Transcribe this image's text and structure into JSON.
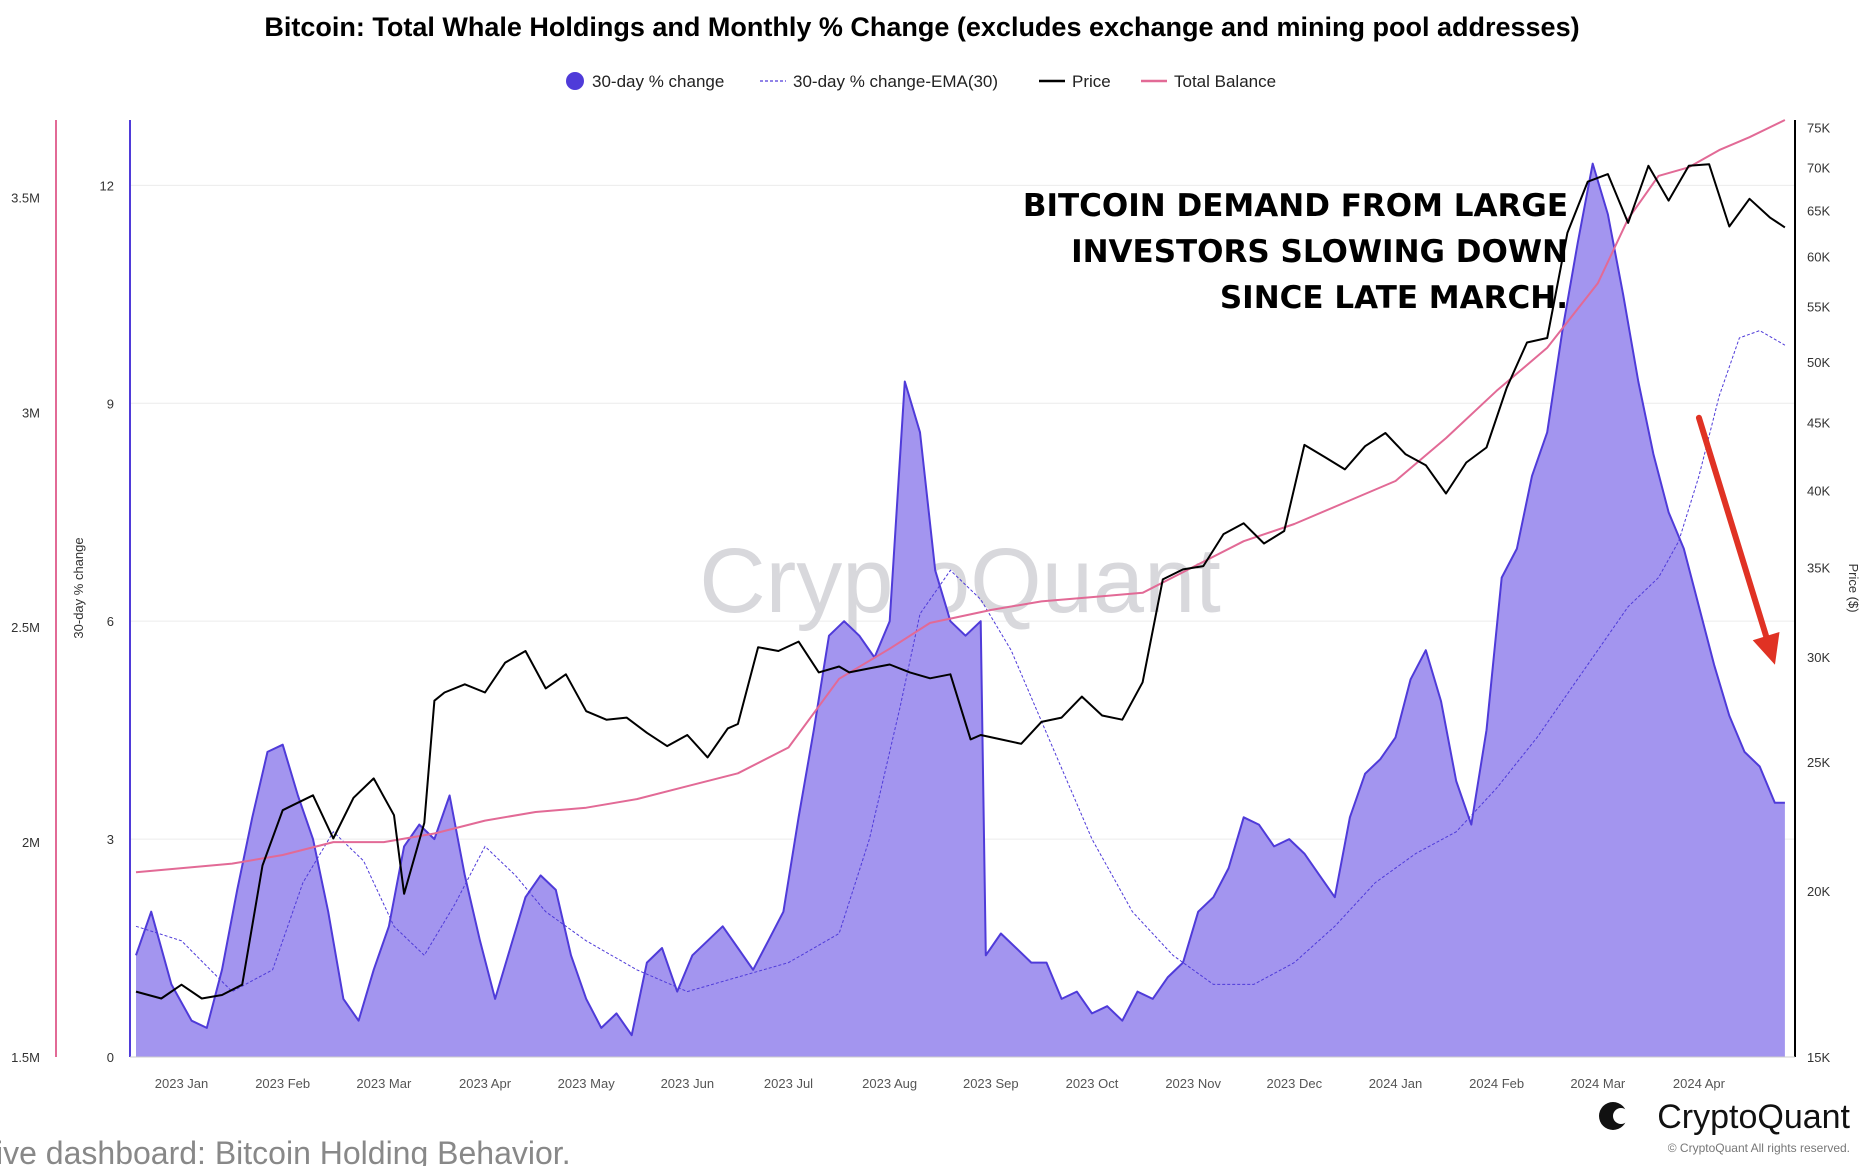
{
  "chart_data": {
    "type": "area",
    "title": "Bitcoin: Total Whale Holdings and Monthly % Change (excludes exchange and mining pool addresses)",
    "legend": [
      {
        "name": "30-day % change",
        "color": "#4f3bd9",
        "style": "dot"
      },
      {
        "name": "30-day % change-EMA(30)",
        "color": "#4f3bd9",
        "style": "dashed"
      },
      {
        "name": "Price",
        "color": "#000000",
        "style": "line"
      },
      {
        "name": "Total Balance",
        "color": "#e26a96",
        "style": "line"
      }
    ],
    "x_ticks": [
      "2023 Jan",
      "2023 Feb",
      "2023 Mar",
      "2023 Apr",
      "2023 May",
      "2023 Jun",
      "2023 Jul",
      "2023 Aug",
      "2023 Sep",
      "2023 Oct",
      "2023 Nov",
      "2023 Dec",
      "2024 Jan",
      "2024 Feb",
      "2024 Mar",
      "2024 Apr"
    ],
    "x_range_months": [
      -0.45,
      15.9
    ],
    "left_axis": {
      "label": "",
      "ticks": [
        "1.5M",
        "2M",
        "2.5M",
        "3M",
        "3.5M"
      ],
      "range": [
        1.5,
        3.68
      ]
    },
    "center_axis": {
      "label": "30-day % change",
      "ticks": [
        "0",
        "3",
        "6",
        "9",
        "12"
      ],
      "range": [
        0,
        12.9
      ]
    },
    "right_axis": {
      "label": "Price ($)",
      "ticks": [
        "15K",
        "20K",
        "25K",
        "30K",
        "35K",
        "40K",
        "45K",
        "50K",
        "55K",
        "60K",
        "65K",
        "70K",
        "75K"
      ],
      "log": true,
      "range": [
        15,
        76
      ]
    },
    "series": [
      {
        "name": "30-day % change",
        "axis": "center",
        "x": [
          -0.45,
          -0.3,
          -0.1,
          0.1,
          0.25,
          0.4,
          0.55,
          0.7,
          0.85,
          1.0,
          1.15,
          1.3,
          1.45,
          1.6,
          1.75,
          1.9,
          2.05,
          2.2,
          2.35,
          2.5,
          2.65,
          2.8,
          2.95,
          3.1,
          3.25,
          3.4,
          3.55,
          3.7,
          3.85,
          4.0,
          4.15,
          4.3,
          4.45,
          4.6,
          4.75,
          4.9,
          5.05,
          5.2,
          5.35,
          5.5,
          5.65,
          5.8,
          5.95,
          6.1,
          6.25,
          6.4,
          6.55,
          6.7,
          6.85,
          7.0,
          7.15,
          7.3,
          7.45,
          7.6,
          7.75,
          7.9,
          7.95,
          8.1,
          8.25,
          8.4,
          8.55,
          8.7,
          8.85,
          9.0,
          9.15,
          9.3,
          9.45,
          9.6,
          9.75,
          9.9,
          10.05,
          10.2,
          10.35,
          10.5,
          10.65,
          10.8,
          10.95,
          11.1,
          11.25,
          11.4,
          11.55,
          11.7,
          11.85,
          12.0,
          12.15,
          12.3,
          12.45,
          12.6,
          12.75,
          12.9,
          13.05,
          13.2,
          13.35,
          13.5,
          13.65,
          13.8,
          13.95,
          14.1,
          14.25,
          14.4,
          14.55,
          14.7,
          14.85,
          15.0,
          15.15,
          15.3,
          15.45,
          15.6,
          15.75,
          15.85
        ],
        "values": [
          1.4,
          2.0,
          1.0,
          0.5,
          0.4,
          1.2,
          2.3,
          3.3,
          4.2,
          4.3,
          3.6,
          3.0,
          2.0,
          0.8,
          0.5,
          1.2,
          1.8,
          2.9,
          3.2,
          3.0,
          3.6,
          2.5,
          1.6,
          0.8,
          1.5,
          2.2,
          2.5,
          2.3,
          1.4,
          0.8,
          0.4,
          0.6,
          0.3,
          1.3,
          1.5,
          0.9,
          1.4,
          1.6,
          1.8,
          1.5,
          1.2,
          1.6,
          2.0,
          3.3,
          4.5,
          5.8,
          6.0,
          5.8,
          5.5,
          6.0,
          9.3,
          8.6,
          6.7,
          6.0,
          5.8,
          6.0,
          1.4,
          1.7,
          1.5,
          1.3,
          1.3,
          0.8,
          0.9,
          0.6,
          0.7,
          0.5,
          0.9,
          0.8,
          1.1,
          1.3,
          2.0,
          2.2,
          2.6,
          3.3,
          3.2,
          2.9,
          3.0,
          2.8,
          2.5,
          2.2,
          3.3,
          3.9,
          4.1,
          4.4,
          5.2,
          5.6,
          4.9,
          3.8,
          3.2,
          4.5,
          6.6,
          7.0,
          8.0,
          8.6,
          10.0,
          11.2,
          12.3,
          11.6,
          10.5,
          9.3,
          8.3,
          7.5,
          7.0,
          6.2,
          5.4,
          4.7,
          4.2,
          4.0,
          3.5,
          3.5
        ]
      },
      {
        "name": "30-day % change-EMA(30)",
        "axis": "center",
        "x": [
          -0.45,
          0.0,
          0.5,
          0.9,
          1.2,
          1.5,
          1.8,
          2.1,
          2.4,
          2.7,
          3.0,
          3.3,
          3.6,
          4.0,
          4.5,
          5.0,
          5.5,
          6.0,
          6.5,
          6.8,
          7.1,
          7.3,
          7.6,
          7.9,
          8.2,
          8.6,
          9.0,
          9.4,
          9.8,
          10.2,
          10.6,
          11.0,
          11.4,
          11.8,
          12.2,
          12.6,
          13.0,
          13.4,
          13.7,
          14.0,
          14.3,
          14.6,
          14.8,
          15.0,
          15.2,
          15.4,
          15.6,
          15.85
        ],
        "values": [
          1.8,
          1.6,
          0.9,
          1.2,
          2.4,
          3.1,
          2.7,
          1.8,
          1.4,
          2.1,
          2.9,
          2.5,
          2.0,
          1.6,
          1.2,
          0.9,
          1.1,
          1.3,
          1.7,
          3.0,
          4.8,
          6.1,
          6.7,
          6.3,
          5.6,
          4.3,
          3.0,
          2.0,
          1.4,
          1.0,
          1.0,
          1.3,
          1.8,
          2.4,
          2.8,
          3.1,
          3.7,
          4.4,
          5.0,
          5.6,
          6.2,
          6.6,
          7.1,
          8.0,
          9.1,
          9.9,
          10.0,
          9.8
        ]
      },
      {
        "name": "Price",
        "axis": "right",
        "x": [
          -0.45,
          -0.2,
          0.0,
          0.2,
          0.4,
          0.6,
          0.8,
          1.0,
          1.1,
          1.3,
          1.5,
          1.7,
          1.9,
          2.1,
          2.2,
          2.4,
          2.5,
          2.6,
          2.8,
          3.0,
          3.2,
          3.4,
          3.6,
          3.8,
          4.0,
          4.2,
          4.4,
          4.6,
          4.8,
          5.0,
          5.2,
          5.4,
          5.5,
          5.7,
          5.9,
          6.1,
          6.3,
          6.5,
          6.6,
          6.8,
          7.0,
          7.2,
          7.4,
          7.6,
          7.8,
          7.9,
          8.1,
          8.3,
          8.5,
          8.7,
          8.9,
          9.1,
          9.3,
          9.5,
          9.7,
          9.9,
          10.1,
          10.3,
          10.5,
          10.7,
          10.9,
          11.1,
          11.3,
          11.5,
          11.7,
          11.9,
          12.1,
          12.3,
          12.5,
          12.7,
          12.9,
          13.1,
          13.3,
          13.5,
          13.7,
          13.9,
          14.1,
          14.3,
          14.5,
          14.7,
          14.9,
          15.1,
          15.3,
          15.5,
          15.7,
          15.85
        ],
        "values": [
          16.8,
          16.6,
          17.0,
          16.6,
          16.7,
          17.0,
          20.9,
          23.0,
          23.2,
          23.6,
          21.9,
          23.5,
          24.3,
          22.8,
          19.9,
          22.5,
          27.8,
          28.2,
          28.6,
          28.2,
          29.7,
          30.3,
          28.4,
          29.1,
          27.3,
          26.9,
          27.0,
          26.3,
          25.7,
          26.2,
          25.2,
          26.5,
          26.7,
          30.5,
          30.3,
          30.8,
          29.2,
          29.5,
          29.2,
          29.4,
          29.6,
          29.2,
          28.9,
          29.1,
          26.0,
          26.2,
          26.0,
          25.8,
          26.8,
          27.0,
          28.0,
          27.1,
          26.9,
          28.7,
          34.3,
          34.9,
          35.1,
          37.1,
          37.8,
          36.5,
          37.3,
          43.3,
          42.4,
          41.5,
          43.2,
          44.2,
          42.6,
          41.8,
          39.8,
          42.0,
          43.1,
          47.8,
          51.7,
          52.1,
          62.5,
          68.3,
          69.2,
          63.6,
          70.2,
          66.1,
          70.2,
          70.4,
          63.2,
          66.3,
          64.2,
          63.1
        ]
      },
      {
        "name": "Total Balance",
        "axis": "left",
        "x": [
          -0.45,
          0.5,
          1.0,
          1.5,
          2.0,
          2.5,
          3.0,
          3.5,
          4.0,
          4.5,
          5.0,
          5.5,
          6.0,
          6.5,
          7.0,
          7.4,
          7.6,
          8.0,
          8.5,
          9.0,
          9.5,
          10.0,
          10.5,
          11.0,
          11.5,
          12.0,
          12.5,
          13.0,
          13.5,
          14.0,
          14.3,
          14.6,
          14.9,
          15.2,
          15.5,
          15.85
        ],
        "values": [
          1.93,
          1.95,
          1.97,
          2.0,
          2.0,
          2.02,
          2.05,
          2.07,
          2.08,
          2.1,
          2.13,
          2.16,
          2.22,
          2.38,
          2.45,
          2.51,
          2.52,
          2.54,
          2.56,
          2.57,
          2.58,
          2.64,
          2.7,
          2.74,
          2.79,
          2.84,
          2.94,
          3.05,
          3.15,
          3.3,
          3.45,
          3.55,
          3.57,
          3.61,
          3.64,
          3.68
        ]
      }
    ],
    "annotation": {
      "lines": [
        "BITCOIN DEMAND FROM LARGE",
        "INVESTORS SLOWING DOWN",
        "SINCE LATE MARCH."
      ],
      "arrow_from_month": 15.0,
      "arrow_to_month": 15.85,
      "arrow_color": "#e03224"
    },
    "watermark": "CryptoQuant",
    "brand": "CryptoQuant",
    "copyright": "© CryptoQuant All rights reserved.",
    "caption": "ive dashboard: Bitcoin Holding Behavior."
  }
}
